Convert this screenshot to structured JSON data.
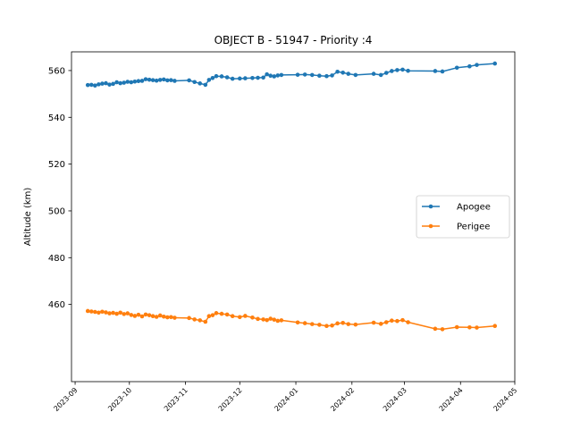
{
  "chart_data": {
    "type": "line",
    "title": "OBJECT B - 51947 - Priority :4",
    "xlabel": "",
    "ylabel": "Altitude (km)",
    "ylim": [
      427,
      568
    ],
    "xlim": [
      "2023-08-30",
      "2024-05-01"
    ],
    "x_ticks": [
      "2023-09",
      "2023-10",
      "2023-11",
      "2023-12",
      "2024-01",
      "2024-02",
      "2024-03",
      "2024-04",
      "2024-05"
    ],
    "y_ticks": [
      460,
      480,
      500,
      520,
      540,
      560
    ],
    "grid": false,
    "legend_position": "center-right",
    "series": [
      {
        "name": "Apogee",
        "color": "#1f77b4",
        "x": [
          "2023-09-08",
          "2023-09-10",
          "2023-09-12",
          "2023-09-14",
          "2023-09-16",
          "2023-09-18",
          "2023-09-20",
          "2023-09-22",
          "2023-09-24",
          "2023-09-26",
          "2023-09-28",
          "2023-09-30",
          "2023-10-02",
          "2023-10-04",
          "2023-10-06",
          "2023-10-08",
          "2023-10-10",
          "2023-10-12",
          "2023-10-14",
          "2023-10-16",
          "2023-10-18",
          "2023-10-20",
          "2023-10-22",
          "2023-10-24",
          "2023-10-26",
          "2023-11-03",
          "2023-11-06",
          "2023-11-09",
          "2023-11-12",
          "2023-11-14",
          "2023-11-16",
          "2023-11-18",
          "2023-11-21",
          "2023-11-24",
          "2023-11-27",
          "2023-12-01",
          "2023-12-04",
          "2023-12-08",
          "2023-12-11",
          "2023-12-14",
          "2023-12-16",
          "2023-12-18",
          "2023-12-20",
          "2023-12-22",
          "2023-12-24",
          "2024-01-02",
          "2024-01-06",
          "2024-01-10",
          "2024-01-14",
          "2024-01-18",
          "2024-01-21",
          "2024-01-24",
          "2024-01-27",
          "2024-01-30",
          "2024-02-03",
          "2024-02-13",
          "2024-02-17",
          "2024-02-20",
          "2024-02-23",
          "2024-02-26",
          "2024-02-29",
          "2024-03-03",
          "2024-03-18",
          "2024-03-22",
          "2024-03-30",
          "2024-04-06",
          "2024-04-10",
          "2024-04-20"
        ],
        "values": [
          553.8,
          553.9,
          553.6,
          554.1,
          554.4,
          554.6,
          554.0,
          554.3,
          555.0,
          554.6,
          554.8,
          555.2,
          555.0,
          555.3,
          555.5,
          555.6,
          556.3,
          556.1,
          555.9,
          555.7,
          556.0,
          556.2,
          555.8,
          555.9,
          555.6,
          555.8,
          555.1,
          554.5,
          553.9,
          556.0,
          556.8,
          557.6,
          557.5,
          557.1,
          556.5,
          556.6,
          556.7,
          556.8,
          556.9,
          557.0,
          558.4,
          557.8,
          557.5,
          557.9,
          558.1,
          558.2,
          558.3,
          558.1,
          557.8,
          557.6,
          557.9,
          559.5,
          559.1,
          558.6,
          558.1,
          558.6,
          558.1,
          559.0,
          559.8,
          560.2,
          560.4,
          559.9,
          559.8,
          559.6,
          561.2,
          561.8,
          562.4,
          563.0
        ]
      },
      {
        "name": "Perigee",
        "color": "#ff7f0e",
        "x": [
          "2023-09-08",
          "2023-09-10",
          "2023-09-12",
          "2023-09-14",
          "2023-09-16",
          "2023-09-18",
          "2023-09-20",
          "2023-09-22",
          "2023-09-24",
          "2023-09-26",
          "2023-09-28",
          "2023-09-30",
          "2023-10-02",
          "2023-10-04",
          "2023-10-06",
          "2023-10-08",
          "2023-10-10",
          "2023-10-12",
          "2023-10-14",
          "2023-10-16",
          "2023-10-18",
          "2023-10-20",
          "2023-10-22",
          "2023-10-24",
          "2023-10-26",
          "2023-11-03",
          "2023-11-06",
          "2023-11-09",
          "2023-11-12",
          "2023-11-14",
          "2023-11-16",
          "2023-11-18",
          "2023-11-21",
          "2023-11-24",
          "2023-11-27",
          "2023-12-01",
          "2023-12-04",
          "2023-12-08",
          "2023-12-11",
          "2023-12-14",
          "2023-12-16",
          "2023-12-18",
          "2023-12-20",
          "2023-12-22",
          "2023-12-24",
          "2024-01-02",
          "2024-01-06",
          "2024-01-10",
          "2024-01-14",
          "2024-01-18",
          "2024-01-21",
          "2024-01-24",
          "2024-01-27",
          "2024-01-30",
          "2024-02-03",
          "2024-02-13",
          "2024-02-17",
          "2024-02-20",
          "2024-02-23",
          "2024-02-26",
          "2024-02-29",
          "2024-03-03",
          "2024-03-18",
          "2024-03-22",
          "2024-03-30",
          "2024-04-06",
          "2024-04-10",
          "2024-04-20"
        ],
        "values": [
          457.2,
          457.0,
          456.8,
          456.5,
          456.9,
          456.6,
          456.2,
          456.4,
          456.0,
          456.5,
          455.9,
          456.2,
          455.5,
          455.1,
          455.6,
          454.9,
          455.7,
          455.4,
          455.0,
          454.7,
          455.3,
          454.8,
          454.5,
          454.6,
          454.3,
          454.2,
          453.6,
          453.2,
          452.6,
          455.0,
          455.4,
          456.3,
          456.0,
          455.7,
          455.0,
          454.6,
          455.1,
          454.4,
          453.8,
          453.6,
          453.3,
          453.9,
          453.5,
          453.0,
          453.2,
          452.3,
          452.0,
          451.6,
          451.3,
          450.8,
          451.0,
          451.9,
          452.1,
          451.6,
          451.4,
          452.2,
          451.7,
          452.4,
          453.1,
          452.9,
          453.3,
          452.4,
          449.6,
          449.4,
          450.3,
          450.2,
          450.1,
          450.8
        ]
      }
    ]
  }
}
